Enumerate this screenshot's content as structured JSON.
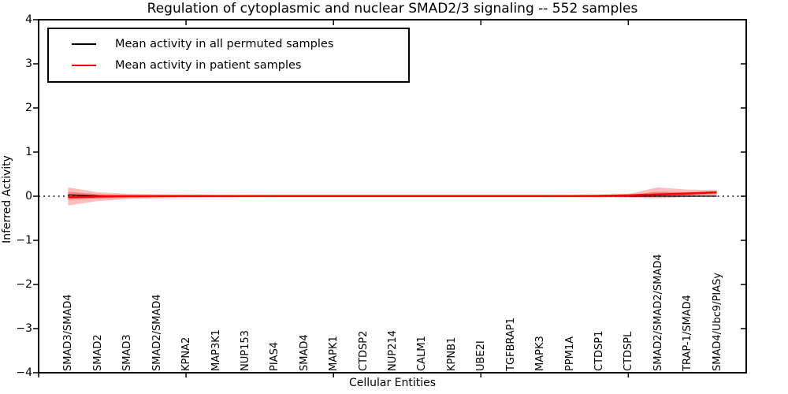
{
  "title": "Regulation of cytoplasmic and nuclear SMAD2/3 signaling -- 552 samples",
  "legend": {
    "items": [
      {
        "label": "Mean activity in all permuted samples",
        "color": "#000000"
      },
      {
        "label": "Mean activity in patient samples",
        "color": "#ff0000"
      }
    ]
  },
  "axes": {
    "x_label": "Cellular Entities",
    "y_label": "Inferred Activity",
    "y_tick_labels": [
      "−4",
      "−3",
      "−2",
      "−1",
      "0",
      "1",
      "2",
      "3",
      "4"
    ]
  },
  "chart_data": {
    "type": "line",
    "title": "Regulation of cytoplasmic and nuclear SMAD2/3 signaling -- 552 samples",
    "xlabel": "Cellular Entities",
    "ylabel": "Inferred Activity",
    "xlim": [
      0,
      24
    ],
    "ylim": [
      -4,
      4
    ],
    "y_ticks": [
      -4,
      -3,
      -2,
      -1,
      0,
      1,
      2,
      3,
      4
    ],
    "x_tick_positions": [
      0,
      5,
      10,
      15,
      20
    ],
    "grid": false,
    "legend_position": "upper left",
    "zero_line": {
      "y": 0,
      "style": "dotted",
      "color": "#000000"
    },
    "categories": [
      "SMAD3/SMAD4",
      "SMAD2",
      "SMAD3",
      "SMAD2/SMAD4",
      "KPNA2",
      "MAP3K1",
      "NUP153",
      "PIAS4",
      "SMAD4",
      "MAPK1",
      "CTDSP2",
      "NUP214",
      "CALM1",
      "KPNB1",
      "UBE2I",
      "TGFBRAP1",
      "MAPK3",
      "PPM1A",
      "CTDSP1",
      "CTDSPL",
      "SMAD2/SMAD2/SMAD4",
      "TRAP-1/SMAD4",
      "SMAD4/Ubc9/PIASy"
    ],
    "x": [
      1,
      2,
      3,
      4,
      5,
      6,
      7,
      8,
      9,
      10,
      11,
      12,
      13,
      14,
      15,
      16,
      17,
      18,
      19,
      20,
      21,
      22,
      23
    ],
    "series": [
      {
        "name": "Mean activity in all permuted samples",
        "color": "#000000",
        "width": 1.3,
        "values": [
          0.03,
          0.01,
          0.005,
          0.003,
          0.002,
          0,
          0,
          0,
          0,
          0,
          0,
          0,
          0,
          0,
          0,
          0,
          0,
          0,
          0,
          0,
          0,
          0,
          0
        ]
      },
      {
        "name": "Mean activity in patient samples",
        "color": "#ff0000",
        "width": 2.5,
        "values": [
          -0.02,
          -0.008,
          0,
          0.003,
          0.005,
          0.005,
          0.005,
          0.005,
          0.005,
          0.005,
          0.005,
          0.005,
          0.005,
          0.005,
          0.005,
          0.005,
          0.005,
          0.005,
          0.01,
          0.02,
          0.04,
          0.06,
          0.09
        ]
      }
    ],
    "bands": [
      {
        "name": "patient-spread-outer",
        "color": "rgba(255,0,0,0.26)",
        "upper": [
          0.2,
          0.09,
          0.055,
          0.042,
          0.036,
          0.03,
          0.026,
          0.024,
          0.024,
          0.024,
          0.024,
          0.024,
          0.024,
          0.024,
          0.024,
          0.024,
          0.024,
          0.026,
          0.03,
          0.05,
          0.2,
          0.15,
          0.14
        ],
        "lower": [
          -0.21,
          -0.11,
          -0.065,
          -0.046,
          -0.038,
          -0.032,
          -0.026,
          -0.024,
          -0.024,
          -0.024,
          -0.024,
          -0.024,
          -0.024,
          -0.024,
          -0.024,
          -0.024,
          -0.024,
          -0.026,
          -0.028,
          -0.032,
          -0.05,
          -0.02,
          0.01
        ]
      },
      {
        "name": "patient-spread-inner",
        "color": "rgba(255,0,0,0.30)",
        "upper": [
          0.1,
          0.046,
          0.03,
          0.022,
          0.016,
          0.013,
          0.012,
          0.012,
          0.012,
          0.012,
          0.012,
          0.012,
          0.012,
          0.012,
          0.012,
          0.012,
          0.012,
          0.013,
          0.016,
          0.03,
          0.1,
          0.09,
          0.11
        ],
        "lower": [
          -0.08,
          -0.05,
          -0.032,
          -0.023,
          -0.017,
          -0.014,
          -0.012,
          -0.012,
          -0.012,
          -0.012,
          -0.012,
          -0.012,
          -0.012,
          -0.012,
          -0.012,
          -0.012,
          -0.012,
          -0.013,
          -0.015,
          -0.012,
          -0.012,
          0.02,
          0.05
        ]
      }
    ]
  }
}
